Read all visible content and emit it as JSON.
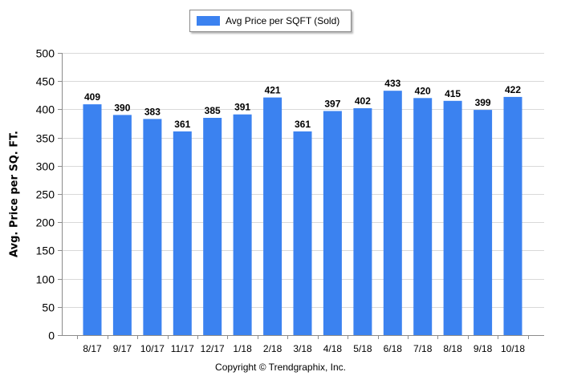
{
  "legend": {
    "label": "Avg Price per SQFT (Sold)"
  },
  "footer": {
    "copyright": "Copyright © Trendgraphix, Inc."
  },
  "colors": {
    "bar": "#3b82f0",
    "grid": "#d9d9d9",
    "axis": "#8c8c8c"
  },
  "chart_data": {
    "type": "bar",
    "categories": [
      "8/17",
      "9/17",
      "10/17",
      "11/17",
      "12/17",
      "1/18",
      "2/18",
      "3/18",
      "4/18",
      "5/18",
      "6/18",
      "7/18",
      "8/18",
      "9/18",
      "10/18"
    ],
    "series": [
      {
        "name": "Avg Price per SQFT (Sold)",
        "values": [
          409,
          390,
          383,
          361,
          385,
          391,
          421,
          361,
          397,
          402,
          433,
          420,
          415,
          399,
          422
        ]
      }
    ],
    "ylabel": "Avg. Price per SQ. FT.",
    "xlabel": "",
    "ylim": [
      0,
      500
    ],
    "yticks": [
      0,
      50,
      100,
      150,
      200,
      250,
      300,
      350,
      400,
      450,
      500
    ],
    "grid": true,
    "legend_position": "top-center"
  }
}
